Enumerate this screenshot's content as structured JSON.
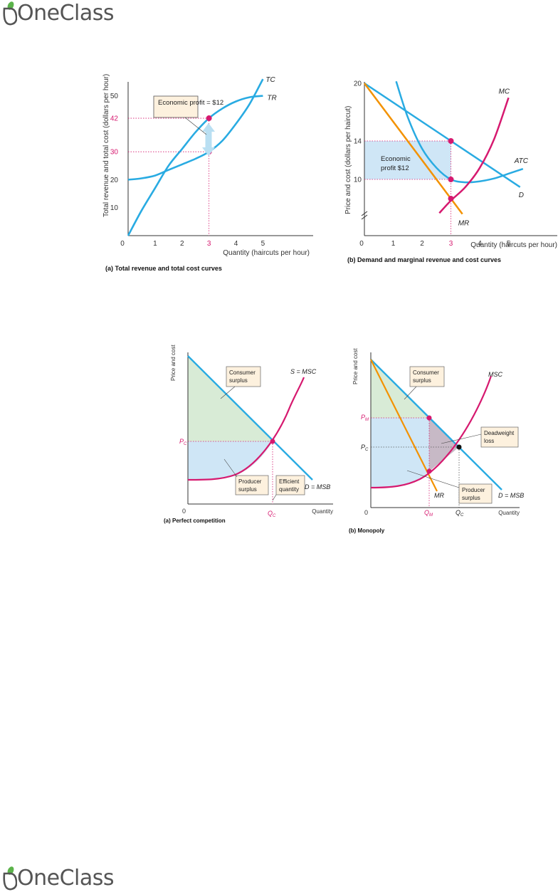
{
  "brand": {
    "name": "OneClass"
  },
  "colors": {
    "blue": "#29abe2",
    "magenta": "#d6196f",
    "orange": "#f39200",
    "green_fill": "#d8ebd6",
    "blue_fill": "#cfe6f6",
    "grey_fill": "#c7b9c6"
  },
  "chart_data": [
    {
      "type": "line",
      "panel": "(a)  Total revenue and total cost curves",
      "xlabel": "Quantity (haircuts per hour)",
      "ylabel": "Total revenue and total cost (dollars per hour)",
      "x_ticks": [
        "0",
        "1",
        "2",
        "3",
        "4",
        "5"
      ],
      "y_ticks": [
        "10",
        "20",
        "30",
        "42",
        "50"
      ],
      "xlim": [
        0,
        6.6
      ],
      "ylim": [
        0,
        55
      ],
      "series": [
        {
          "name": "TC",
          "x": [
            0,
            0.5,
            1,
            1.5,
            2,
            2.5,
            3,
            3.5,
            4,
            4.5,
            5
          ],
          "y": [
            20,
            20.5,
            21.5,
            23.5,
            25.5,
            27.5,
            30,
            34,
            40,
            47,
            56
          ]
        },
        {
          "name": "TR",
          "x": [
            0,
            0.5,
            1,
            1.5,
            2,
            2.5,
            3,
            3.5,
            4,
            4.5,
            5
          ],
          "y": [
            0,
            9,
            17,
            25,
            31,
            37,
            42,
            45.5,
            48,
            49.5,
            50
          ]
        }
      ],
      "markers": [
        {
          "x": 3,
          "y": 42
        },
        {
          "x": 3,
          "y": 30
        }
      ],
      "highlight_x": "3",
      "highlight_y": [
        "42",
        "30"
      ],
      "annotation": "Economic profit = $12"
    },
    {
      "type": "line",
      "panel": "(b) Demand and marginal revenue and cost curves",
      "xlabel": "Quantity (haircuts per hour)",
      "ylabel": "Price and cost (dollars per haircut)",
      "x_ticks": [
        "0",
        "1",
        "2",
        "3",
        "4",
        "5"
      ],
      "y_ticks": [
        "10",
        "14",
        "20"
      ],
      "xlim": [
        0,
        6.7
      ],
      "ylim": [
        6,
        20.2
      ],
      "series": [
        {
          "name": "D",
          "x": [
            0,
            3,
            5.4
          ],
          "y": [
            20,
            14,
            9.2
          ]
        },
        {
          "name": "MR",
          "x": [
            0,
            3,
            3.4
          ],
          "y": [
            20,
            8,
            6.4
          ]
        },
        {
          "name": "ATC",
          "x": [
            1.1,
            1.5,
            2,
            2.5,
            3,
            3.5,
            4,
            4.5,
            5,
            5.5
          ],
          "y": [
            20.2,
            16.5,
            13.2,
            11.2,
            10,
            9.7,
            9.8,
            10.1,
            10.6,
            11.1
          ]
        },
        {
          "name": "MC",
          "x": [
            2.6,
            3,
            3.5,
            4,
            4.5,
            5
          ],
          "y": [
            6.5,
            7.8,
            9.2,
            11.2,
            14.2,
            18.5
          ]
        }
      ],
      "markers": [
        {
          "x": 3,
          "y": 14
        },
        {
          "x": 3,
          "y": 10
        },
        {
          "x": 3,
          "y": 8
        }
      ],
      "highlight_x": "3",
      "annotation": [
        "Economic",
        "profit $12"
      ]
    },
    {
      "type": "line",
      "panel": "(a) Perfect competition",
      "xlabel": "Quantity",
      "ylabel": "Price and cost",
      "x_ticks": [
        "0"
      ],
      "origin": "0",
      "series": [
        {
          "name": "D = MSB"
        },
        {
          "name": "S = MSC"
        }
      ],
      "points": {
        "price": [
          "P",
          "C"
        ],
        "quantity": [
          "Q",
          "C"
        ]
      },
      "labels": {
        "consumer": [
          "Consumer",
          "surplus"
        ],
        "producer": [
          "Producer",
          "surplus"
        ],
        "efficient": [
          "Efficient",
          "quantity"
        ]
      }
    },
    {
      "type": "line",
      "panel": "(b) Monopoly",
      "xlabel": "Quantity",
      "ylabel": "Price and cost",
      "x_ticks": [
        "0"
      ],
      "origin": "0",
      "series": [
        {
          "name": "D = MSB"
        },
        {
          "name": "MSC"
        },
        {
          "name": "MR"
        }
      ],
      "points": {
        "pm": [
          "P",
          "M"
        ],
        "pc": [
          "P",
          "C"
        ],
        "qm": [
          "Q",
          "M"
        ],
        "qc": [
          "Q",
          "C"
        ]
      },
      "labels": {
        "consumer": [
          "Consumer",
          "surplus"
        ],
        "producer": [
          "Producer",
          "surplus"
        ],
        "deadweight": [
          "Deadweight",
          "loss"
        ]
      }
    }
  ]
}
